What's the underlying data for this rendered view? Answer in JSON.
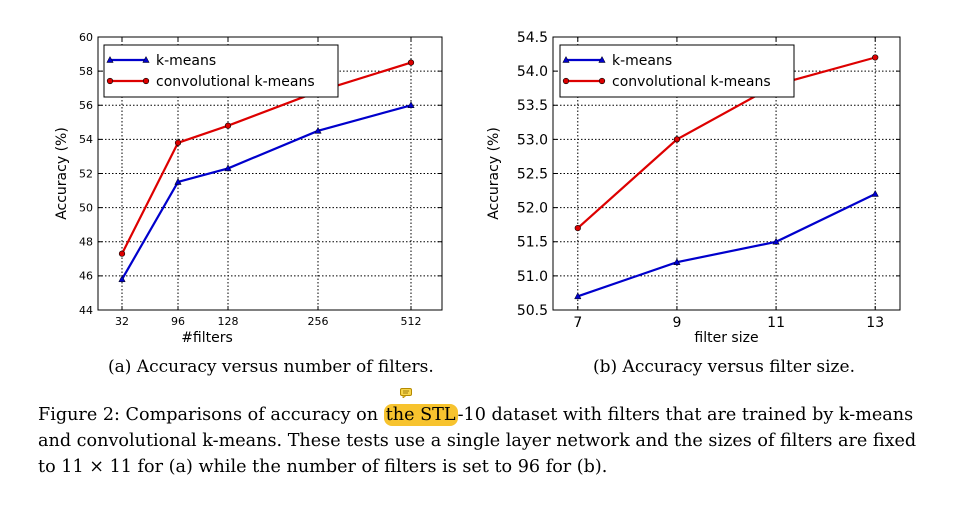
{
  "figure_a": {
    "subcaption": "(a) Accuracy versus number of filters."
  },
  "figure_b": {
    "subcaption": "(b) Accuracy versus filter size."
  },
  "caption": {
    "before_highlight": "Figure 2: Comparisons of accuracy on ",
    "highlight": "the STL",
    "after_highlight": "-10 dataset with filters that are trained by k-means",
    "line2": "and convolutional k-means. These tests use a single layer network and the sizes of filters are fixed",
    "line3": "to 11 × 11 for (a) while the number of filters is set to 96 for (b)."
  },
  "annotation": {
    "highlight_color": "#f7c32e",
    "icon": "comment-icon"
  },
  "chart_data": [
    {
      "type": "line",
      "xlabel": "#filters",
      "ylabel": "Accuracy (%)",
      "x": [
        32,
        96,
        128,
        256,
        512
      ],
      "x_ticklabels": [
        "32",
        "96",
        "128",
        "256",
        "512"
      ],
      "ylim": [
        44,
        60
      ],
      "y_ticks": [
        44,
        46,
        48,
        50,
        52,
        54,
        56,
        58,
        60
      ],
      "y_ticklabels": [
        "44",
        "46",
        "48",
        "50",
        "52",
        "54",
        "56",
        "58",
        "60"
      ],
      "grid": true,
      "legend_position": "top-left",
      "series": [
        {
          "name": "k-means",
          "values": [
            45.8,
            51.5,
            52.3,
            54.5,
            56.0
          ],
          "color": "#0000cc",
          "marker": "triangle"
        },
        {
          "name": "convolutional k-means",
          "values": [
            47.3,
            53.8,
            54.8,
            56.8,
            58.5
          ],
          "color": "#dd0000",
          "marker": "circle"
        }
      ]
    },
    {
      "type": "line",
      "xlabel": "filter size",
      "ylabel": "Accuracy (%)",
      "x": [
        7,
        9,
        11,
        13
      ],
      "x_ticklabels": [
        "7",
        "9",
        "11",
        "13"
      ],
      "ylim": [
        50.5,
        54.5
      ],
      "y_ticks": [
        50.5,
        51.0,
        51.5,
        52.0,
        52.5,
        53.0,
        53.5,
        54.0,
        54.5
      ],
      "y_ticklabels": [
        "50.5",
        "51.0",
        "51.5",
        "52.0",
        "52.5",
        "53.0",
        "53.5",
        "54.0",
        "54.5"
      ],
      "grid": true,
      "legend_position": "top-left",
      "series": [
        {
          "name": "k-means",
          "values": [
            50.7,
            51.2,
            51.5,
            52.2
          ],
          "color": "#0000cc",
          "marker": "triangle"
        },
        {
          "name": "convolutional k-means",
          "values": [
            51.7,
            53.0,
            53.8,
            54.2
          ],
          "color": "#dd0000",
          "marker": "circle"
        }
      ]
    }
  ]
}
